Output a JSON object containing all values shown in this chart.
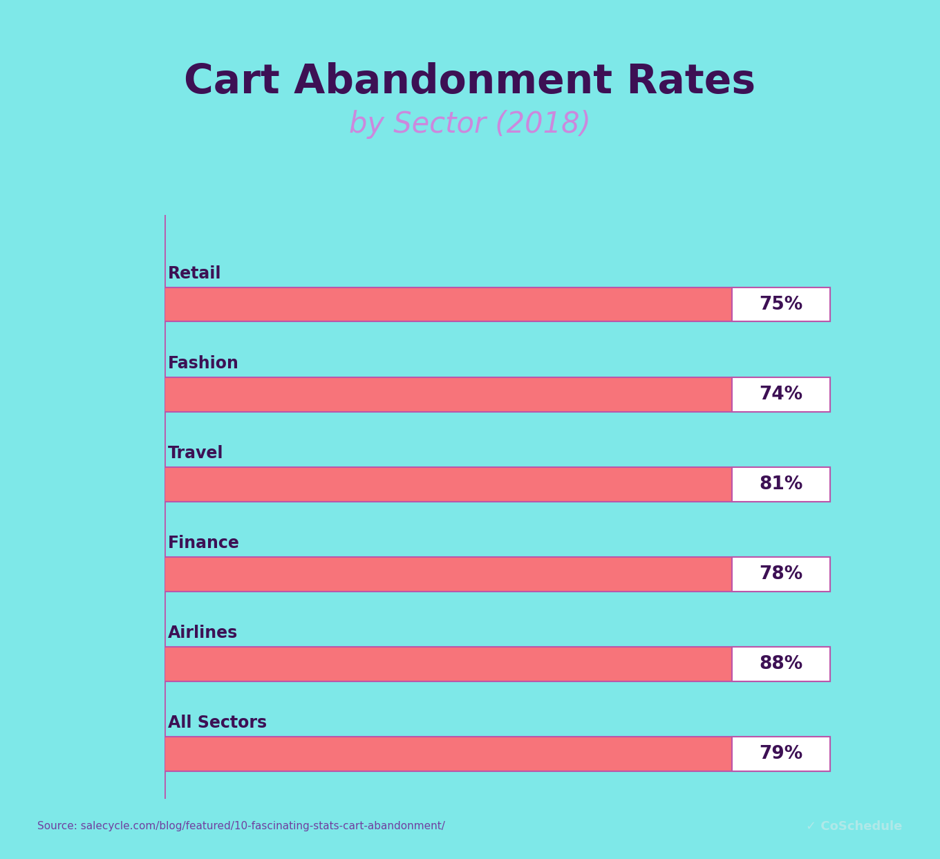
{
  "title_line1": "Cart Abandonment Rates",
  "title_line2": "by Sector (2018)",
  "title_color": "#3d1054",
  "subtitle_color": "#cc88dd",
  "background_color": "#7ee8e8",
  "bar_color": "#f7747a",
  "bar_outline_color": "#bb55aa",
  "label_box_color": "#ffffff",
  "label_text_color": "#3d1054",
  "category_text_color": "#3d1054",
  "categories": [
    "Retail",
    "Fashion",
    "Travel",
    "Finance",
    "Airlines",
    "All Sectors"
  ],
  "values": [
    75,
    74,
    81,
    78,
    88,
    79
  ],
  "source_text": "Source: salecycle.com/blog/featured/10-fascinating-stats-cart-abandonment/",
  "source_color": "#7040a0",
  "coschedule_text": "✓ CoSchedule",
  "coschedule_color": "#b0e8e8",
  "fig_width": 13.6,
  "fig_height": 12.43,
  "dpi": 100
}
